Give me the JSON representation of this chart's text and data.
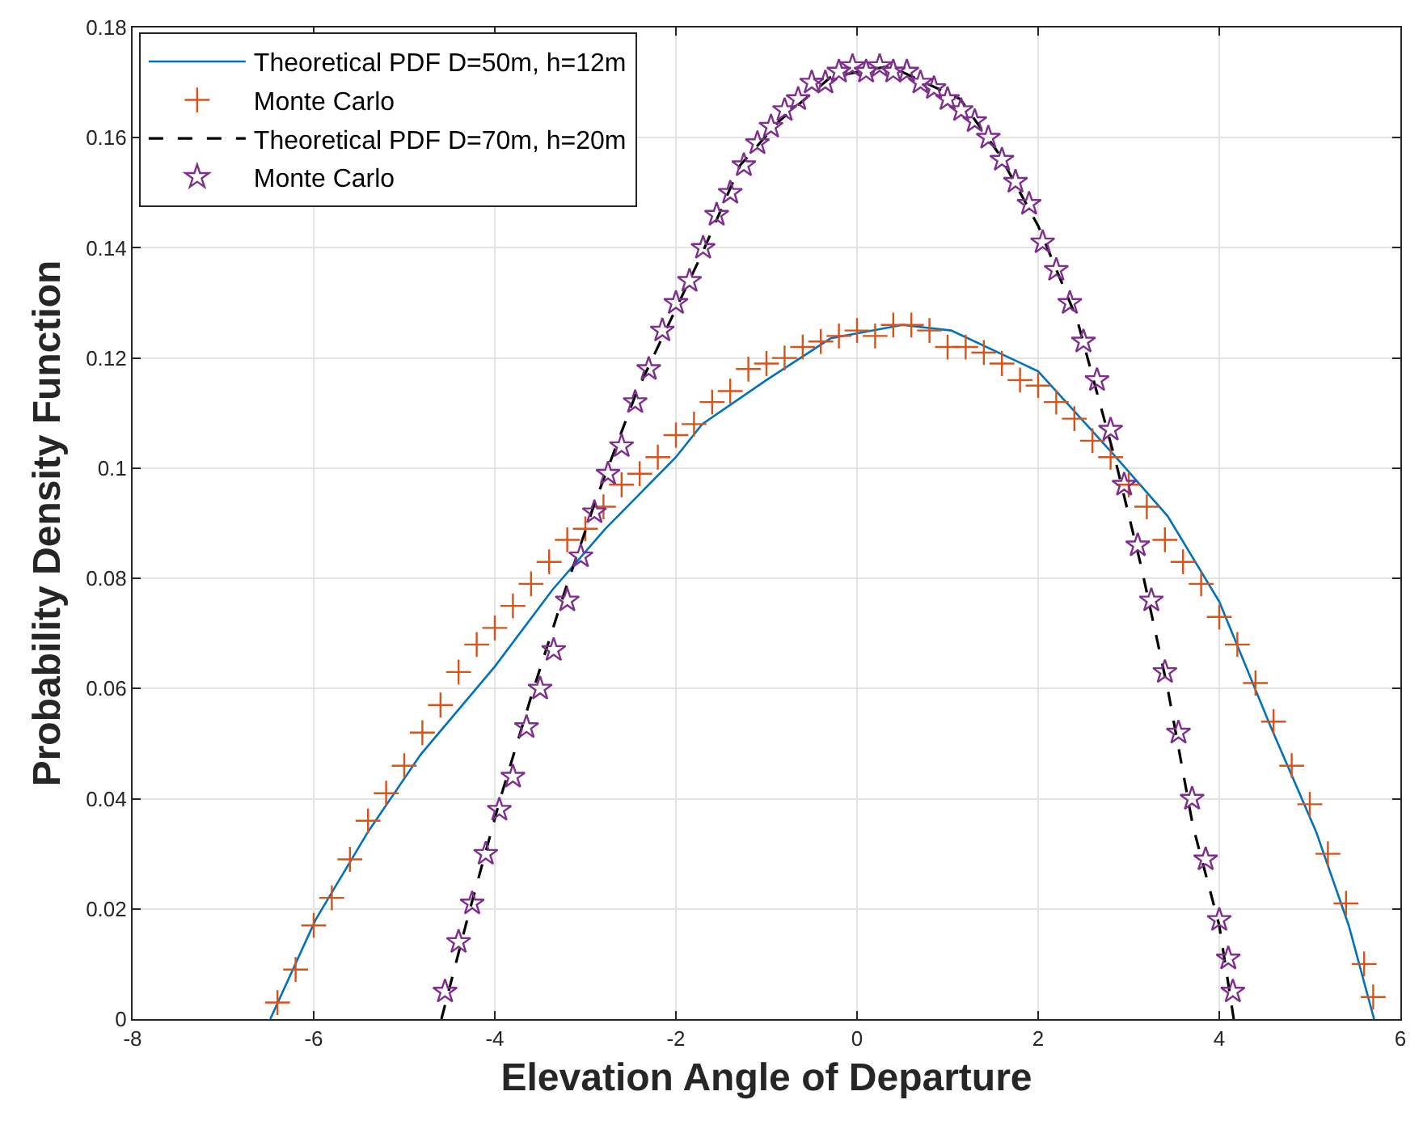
{
  "chart_data": {
    "type": "line",
    "xlabel": "Elevation Angle of Departure",
    "ylabel": "Probability Density Function",
    "xlim": [
      -8,
      6
    ],
    "xticks": [
      -8,
      -6,
      -4,
      -2,
      0,
      2,
      4,
      6
    ],
    "ylim": [
      0,
      0.18
    ],
    "yticks": [
      0,
      0.02,
      0.04,
      0.06,
      0.08,
      0.1,
      0.12,
      0.14,
      0.16,
      0.18
    ],
    "grid": true,
    "legend": "top left",
    "series": [
      {
        "name": "Theoretical PDF D=50m, h=12m",
        "color": "#0072bd",
        "marker": "none",
        "line_style": "solid",
        "x": [
          -6.48,
          -5.98,
          -5.4,
          -4.82,
          -4,
          -3.36,
          -2.78,
          -2,
          -1.71,
          -1,
          -0.29,
          0.5,
          1.04,
          2,
          2.86,
          3.43,
          4,
          4.57,
          5.07,
          5.43,
          5.71
        ],
        "values": [
          0,
          0.018,
          0.034,
          0.048,
          0.064,
          0.078,
          0.089,
          0.102,
          0.108,
          0.116,
          0.1236,
          0.126,
          0.125,
          0.1176,
          0.102,
          0.0913,
          0.0758,
          0.053,
          0.034,
          0.017,
          0
        ]
      },
      {
        "name": "Monte Carlo",
        "type": "scatter",
        "color": "#d95319",
        "marker": "cross",
        "x": [
          -6.4,
          -6.2,
          -6.0,
          -5.8,
          -5.6,
          -5.4,
          -5.2,
          -5.0,
          -4.8,
          -4.6,
          -4.4,
          -4.2,
          -4.0,
          -3.8,
          -3.6,
          -3.4,
          -3.2,
          -3.0,
          -2.8,
          -2.6,
          -2.4,
          -2.2,
          -2.0,
          -1.8,
          -1.6,
          -1.4,
          -1.2,
          -1.0,
          -0.8,
          -0.6,
          -0.4,
          -0.2,
          0,
          0.2,
          0.4,
          0.6,
          0.8,
          1.0,
          1.2,
          1.4,
          1.6,
          1.8,
          2.0,
          2.2,
          2.4,
          2.6,
          2.8,
          3.0,
          3.2,
          3.4,
          3.6,
          3.8,
          4.0,
          4.2,
          4.4,
          4.6,
          4.8,
          5.0,
          5.2,
          5.4,
          5.6,
          5.7
        ],
        "values": [
          0.003,
          0.009,
          0.017,
          0.022,
          0.029,
          0.036,
          0.041,
          0.046,
          0.052,
          0.057,
          0.063,
          0.068,
          0.071,
          0.075,
          0.079,
          0.083,
          0.087,
          0.089,
          0.093,
          0.097,
          0.099,
          0.102,
          0.106,
          0.108,
          0.112,
          0.114,
          0.118,
          0.119,
          0.12,
          0.122,
          0.123,
          0.124,
          0.125,
          0.124,
          0.126,
          0.126,
          0.125,
          0.122,
          0.122,
          0.121,
          0.119,
          0.116,
          0.115,
          0.112,
          0.109,
          0.105,
          0.102,
          0.097,
          0.093,
          0.087,
          0.083,
          0.079,
          0.073,
          0.068,
          0.061,
          0.054,
          0.046,
          0.039,
          0.03,
          0.021,
          0.01,
          0.004
        ]
      },
      {
        "name": "Theoretical PDF D=70m, h=20m",
        "color": "#000000",
        "marker": "none",
        "line_style": "dashed",
        "x": [
          -4.59,
          -4.29,
          -3.94,
          -3.59,
          -3.24,
          -2.89,
          -2.43,
          -1.71,
          -1.29,
          -0.86,
          -0.29,
          0.36,
          1.14,
          1.57,
          2,
          2.43,
          2.86,
          3.14,
          3.43,
          3.71,
          4,
          4.16
        ],
        "values": [
          0,
          0.019,
          0.04,
          0.059,
          0.077,
          0.094,
          0.114,
          0.139,
          0.155,
          0.163,
          0.171,
          0.173,
          0.167,
          0.157,
          0.144,
          0.127,
          0.101,
          0.082,
          0.06,
          0.035,
          0.017,
          0
        ]
      },
      {
        "name": "Monte Carlo",
        "type": "scatter",
        "color": "#7e2f8e",
        "marker": "star",
        "x": [
          -4.55,
          -4.4,
          -4.25,
          -4.1,
          -3.95,
          -3.8,
          -3.65,
          -3.5,
          -3.35,
          -3.2,
          -3.05,
          -2.9,
          -2.75,
          -2.6,
          -2.45,
          -2.3,
          -2.15,
          -2.0,
          -1.85,
          -1.7,
          -1.55,
          -1.4,
          -1.25,
          -1.1,
          -0.95,
          -0.8,
          -0.65,
          -0.5,
          -0.35,
          -0.2,
          -0.05,
          0.1,
          0.25,
          0.4,
          0.55,
          0.7,
          0.85,
          1.0,
          1.15,
          1.3,
          1.45,
          1.6,
          1.75,
          1.9,
          2.05,
          2.2,
          2.35,
          2.5,
          2.65,
          2.8,
          2.95,
          3.1,
          3.25,
          3.4,
          3.55,
          3.7,
          3.85,
          4.0,
          4.1,
          4.15
        ],
        "values": [
          0.005,
          0.014,
          0.021,
          0.03,
          0.038,
          0.044,
          0.053,
          0.06,
          0.067,
          0.076,
          0.084,
          0.092,
          0.099,
          0.104,
          0.112,
          0.118,
          0.125,
          0.13,
          0.134,
          0.14,
          0.146,
          0.15,
          0.155,
          0.159,
          0.162,
          0.165,
          0.167,
          0.17,
          0.17,
          0.172,
          0.173,
          0.172,
          0.173,
          0.172,
          0.172,
          0.17,
          0.169,
          0.167,
          0.165,
          0.163,
          0.16,
          0.156,
          0.152,
          0.148,
          0.141,
          0.136,
          0.13,
          0.123,
          0.116,
          0.107,
          0.097,
          0.086,
          0.076,
          0.063,
          0.052,
          0.04,
          0.029,
          0.018,
          0.011,
          0.005
        ]
      }
    ]
  }
}
